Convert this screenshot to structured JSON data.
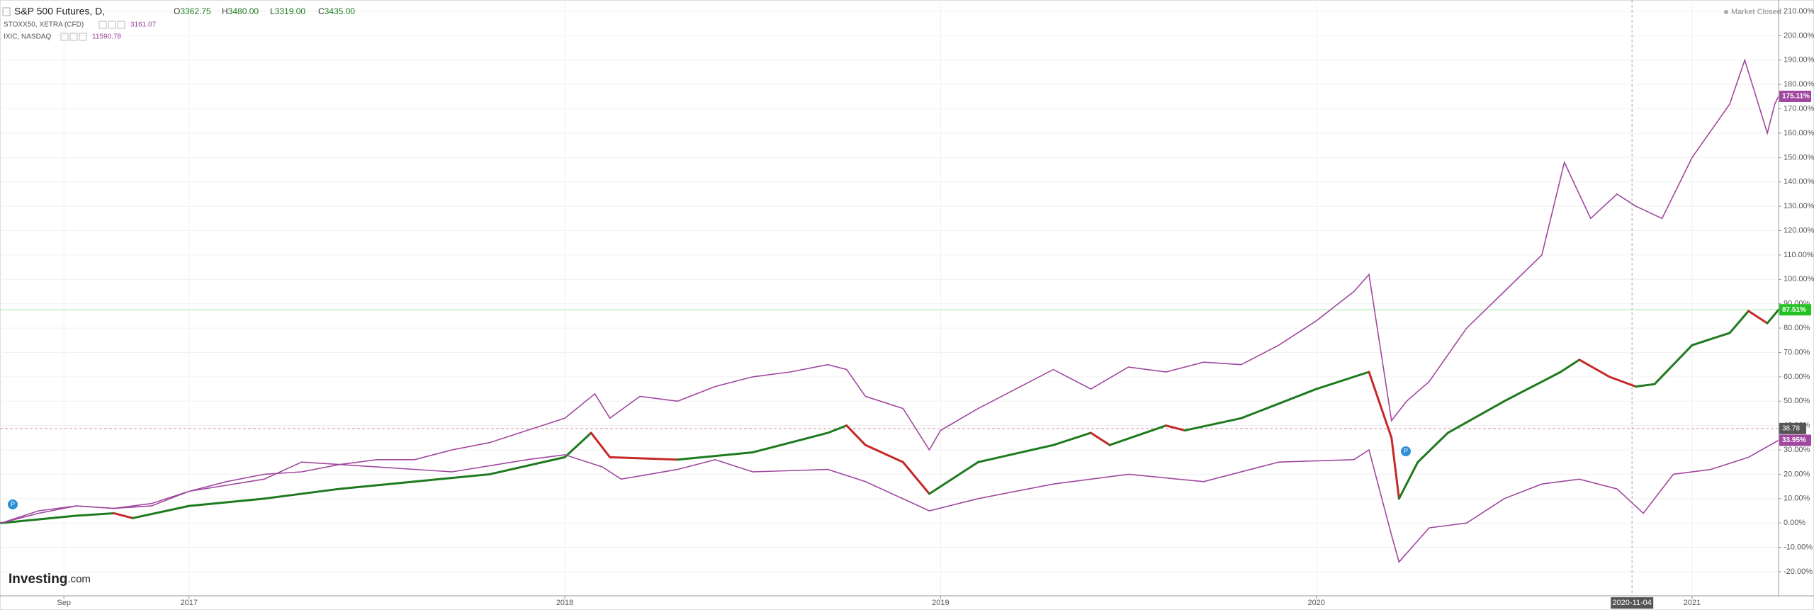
{
  "chart_data": {
    "type": "line",
    "market_status": "Market Closed",
    "logo": {
      "bold": "Investing",
      "rest": ".com"
    },
    "ohlc": [
      {
        "label": "O",
        "value": "3362.75"
      },
      {
        "label": "H",
        "value": "3480.00"
      },
      {
        "label": "L",
        "value": "3319.00"
      },
      {
        "label": "C",
        "value": "3435.00"
      }
    ],
    "xlim": [
      2016.497,
      2021.23
    ],
    "xticks": [
      {
        "value": 2016.667,
        "label": "Sep"
      },
      {
        "value": 2017,
        "label": "2017"
      },
      {
        "value": 2018,
        "label": "2018"
      },
      {
        "value": 2019,
        "label": "2019"
      },
      {
        "value": 2020,
        "label": "2020"
      },
      {
        "value": 2021,
        "label": "2021"
      }
    ],
    "ylim": [
      -20,
      210
    ],
    "yticks": [
      {
        "value": -20,
        "label": "-20.00%"
      },
      {
        "value": -10,
        "label": "-10.00%"
      },
      {
        "value": 0,
        "label": "0.00%"
      },
      {
        "value": 10,
        "label": "10.00%"
      },
      {
        "value": 20,
        "label": "20.00%"
      },
      {
        "value": 30,
        "label": "30.00%"
      },
      {
        "value": 40,
        "label": "40.00%"
      },
      {
        "value": 50,
        "label": "50.00%"
      },
      {
        "value": 60,
        "label": "60.00%"
      },
      {
        "value": 70,
        "label": "70.00%"
      },
      {
        "value": 80,
        "label": "80.00%"
      },
      {
        "value": 90,
        "label": "90.00%"
      },
      {
        "value": 100,
        "label": "100.00%"
      },
      {
        "value": 110,
        "label": "110.00%"
      },
      {
        "value": 120,
        "label": "120.00%"
      },
      {
        "value": 130,
        "label": "130.00%"
      },
      {
        "value": 140,
        "label": "140.00%"
      },
      {
        "value": 150,
        "label": "150.00%"
      },
      {
        "value": 160,
        "label": "160.00%"
      },
      {
        "value": 170,
        "label": "170.00%"
      },
      {
        "value": 180,
        "label": "180.00%"
      },
      {
        "value": 190,
        "label": "190.00%"
      },
      {
        "value": 200,
        "label": "200.00%"
      },
      {
        "value": 210,
        "label": "210.00%"
      }
    ],
    "grid": true,
    "crosshair": {
      "x": {
        "value": 2020.84,
        "label": "2020-11-04"
      },
      "y": 38.78
    },
    "series": [
      {
        "name": "S&P 500 Futures, D,",
        "up_color": "#1f7a1f",
        "down_color": "#c62828",
        "label_color": "#22c322",
        "last_label": "87.51%",
        "x": [
          2016.5,
          2016.7,
          2016.8,
          2016.85,
          2017.0,
          2017.2,
          2017.4,
          2017.6,
          2017.8,
          2018.0,
          2018.07,
          2018.12,
          2018.3,
          2018.5,
          2018.7,
          2018.75,
          2018.8,
          2018.9,
          2018.97,
          2019.1,
          2019.3,
          2019.4,
          2019.45,
          2019.6,
          2019.65,
          2019.8,
          2020.0,
          2020.14,
          2020.2,
          2020.22,
          2020.27,
          2020.35,
          2020.5,
          2020.65,
          2020.7,
          2020.78,
          2020.85,
          2020.9,
          2021.0,
          2021.1,
          2021.15,
          2021.2,
          2021.23
        ],
        "values": [
          0,
          3,
          4,
          2,
          7,
          10,
          14,
          17,
          20,
          27,
          37,
          27,
          26,
          29,
          37,
          40,
          32,
          25,
          12,
          25,
          32,
          37,
          32,
          40,
          38,
          43,
          55,
          62,
          35,
          10,
          25,
          37,
          50,
          62,
          67,
          60,
          56,
          57,
          73,
          78,
          87,
          82,
          87.51
        ]
      },
      {
        "name": "STOXX50, XETRA (CFD)",
        "info": "3161.07",
        "color": "#a0479f",
        "last_label": "33.95%",
        "x": [
          2016.5,
          2016.6,
          2016.7,
          2016.8,
          2016.9,
          2017.0,
          2017.2,
          2017.3,
          2017.5,
          2017.7,
          2017.9,
          2018.0,
          2018.1,
          2018.15,
          2018.3,
          2018.4,
          2018.5,
          2018.7,
          2018.8,
          2018.97,
          2019.1,
          2019.3,
          2019.5,
          2019.7,
          2019.9,
          2020.1,
          2020.14,
          2020.2,
          2020.22,
          2020.3,
          2020.4,
          2020.5,
          2020.6,
          2020.7,
          2020.8,
          2020.87,
          2020.95,
          2021.05,
          2021.15,
          2021.23
        ],
        "values": [
          0,
          4,
          7,
          6,
          7,
          13,
          18,
          25,
          23,
          21,
          26,
          28,
          23,
          18,
          22,
          26,
          21,
          22,
          17,
          5,
          10,
          16,
          20,
          17,
          25,
          26,
          30,
          -5,
          -16,
          -2,
          0,
          10,
          16,
          18,
          14,
          4,
          20,
          22,
          27,
          33.95
        ]
      },
      {
        "name": "IXIC, NASDAQ",
        "info": "11590.78",
        "color": "#a0479f",
        "last_label": "175.11%",
        "x": [
          2016.5,
          2016.6,
          2016.7,
          2016.8,
          2016.9,
          2017.0,
          2017.1,
          2017.2,
          2017.3,
          2017.4,
          2017.5,
          2017.6,
          2017.7,
          2017.8,
          2017.9,
          2018.0,
          2018.08,
          2018.12,
          2018.2,
          2018.3,
          2018.4,
          2018.5,
          2018.6,
          2018.7,
          2018.75,
          2018.8,
          2018.9,
          2018.97,
          2019.0,
          2019.1,
          2019.2,
          2019.3,
          2019.4,
          2019.5,
          2019.6,
          2019.7,
          2019.8,
          2019.9,
          2020.0,
          2020.1,
          2020.14,
          2020.2,
          2020.24,
          2020.3,
          2020.4,
          2020.5,
          2020.6,
          2020.66,
          2020.73,
          2020.8,
          2020.85,
          2020.92,
          2021.0,
          2021.1,
          2021.14,
          2021.2,
          2021.22,
          2021.23
        ],
        "values": [
          0,
          5,
          7,
          6,
          8,
          13,
          17,
          20,
          21,
          24,
          26,
          26,
          30,
          33,
          38,
          43,
          53,
          43,
          52,
          50,
          56,
          60,
          62,
          65,
          63,
          52,
          47,
          30,
          38,
          47,
          55,
          63,
          55,
          64,
          62,
          66,
          65,
          73,
          83,
          95,
          102,
          42,
          50,
          58,
          80,
          95,
          110,
          148,
          125,
          135,
          130,
          125,
          150,
          172,
          190,
          160,
          172,
          175.11
        ]
      }
    ]
  }
}
